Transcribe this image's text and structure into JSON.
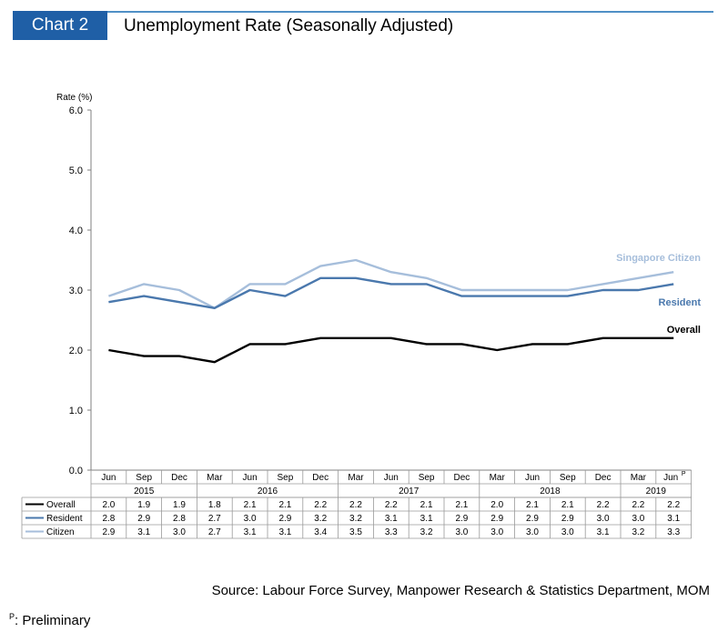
{
  "header": {
    "badge": "Chart 2",
    "title": "Unemployment Rate (Seasonally Adjusted)"
  },
  "colors": {
    "badge_bg": "#1f5fa6",
    "rule": "#4f8fc6",
    "overall": "#000000",
    "resident": "#4a78ad",
    "citizen": "#a6bedb"
  },
  "chart_data": {
    "type": "line",
    "ylabel": "Rate (%)",
    "ylim": [
      0,
      6
    ],
    "yticks": [
      "0.0",
      "1.0",
      "2.0",
      "3.0",
      "4.0",
      "5.0",
      "6.0"
    ],
    "grid": false,
    "categories": [
      "Jun",
      "Sep",
      "Dec",
      "Mar",
      "Jun",
      "Sep",
      "Dec",
      "Mar",
      "Jun",
      "Sep",
      "Dec",
      "Mar",
      "Jun",
      "Sep",
      "Dec",
      "Mar",
      "Jun"
    ],
    "last_category_superscript": "P",
    "years": [
      {
        "label": "2015",
        "start": 0,
        "end": 2
      },
      {
        "label": "2016",
        "start": 3,
        "end": 6
      },
      {
        "label": "2017",
        "start": 7,
        "end": 10
      },
      {
        "label": "2018",
        "start": 11,
        "end": 14
      },
      {
        "label": "2019",
        "start": 15,
        "end": 16
      }
    ],
    "series": [
      {
        "name": "Overall",
        "line_label": "Overall",
        "key": "overall",
        "values": [
          2.0,
          1.9,
          1.9,
          1.8,
          2.1,
          2.1,
          2.2,
          2.2,
          2.2,
          2.1,
          2.1,
          2.0,
          2.1,
          2.1,
          2.2,
          2.2,
          2.2
        ]
      },
      {
        "name": "Resident",
        "line_label": "Resident",
        "key": "resident",
        "values": [
          2.8,
          2.9,
          2.8,
          2.7,
          3.0,
          2.9,
          3.2,
          3.2,
          3.1,
          3.1,
          2.9,
          2.9,
          2.9,
          2.9,
          3.0,
          3.0,
          3.1
        ]
      },
      {
        "name": "Citizen",
        "line_label": "Singapore Citizen",
        "key": "citizen",
        "values": [
          2.9,
          3.1,
          3.0,
          2.7,
          3.1,
          3.1,
          3.4,
          3.5,
          3.3,
          3.2,
          3.0,
          3.0,
          3.0,
          3.0,
          3.1,
          3.2,
          3.3
        ]
      }
    ]
  },
  "footer": {
    "source": "Source: Labour Force Survey, Manpower Research & Statistics Department, MOM",
    "prelim_sup": "P",
    "prelim_text": ": Preliminary"
  }
}
